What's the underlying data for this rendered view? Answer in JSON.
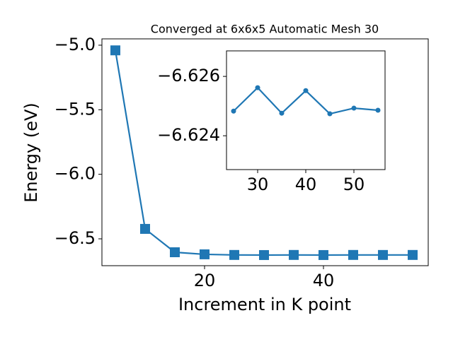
{
  "chart_data": [
    {
      "type": "line",
      "title": "Converged at 6x6x5 Automatic Mesh 30",
      "x_label": "Increment in K point",
      "y_label": "Energy (eV)",
      "x": [
        5,
        10,
        15,
        20,
        25,
        30,
        35,
        40,
        45,
        50,
        55
      ],
      "values": [
        -5.04,
        -6.423,
        -6.604,
        -6.62,
        -6.62483,
        -6.62562,
        -6.62476,
        -6.62552,
        -6.62474,
        -6.62493,
        -6.62486
      ],
      "color": "#1f77b4",
      "marker": "square",
      "xlim": [
        2.74,
        57.62
      ],
      "xticks": [
        20,
        40
      ],
      "ylim": [
        -6.708,
        -4.951
      ],
      "yticks": [
        {
          "value": -6.5,
          "label": "−6.5"
        },
        {
          "value": -6.0,
          "label": "−6.0"
        },
        {
          "value": -5.5,
          "label": "−5.5"
        },
        {
          "value": -5.0,
          "label": "−5.0"
        }
      ]
    },
    {
      "type": "line",
      "x": [
        25,
        30,
        35,
        40,
        45,
        50,
        55
      ],
      "values": [
        -6.62483,
        -6.62562,
        -6.62476,
        -6.62552,
        -6.62474,
        -6.62493,
        -6.62486
      ],
      "color": "#1f77b4",
      "marker": "circle",
      "xlim": [
        23.53,
        56.47
      ],
      "xticks": [
        30,
        40,
        50
      ],
      "ylim": [
        -6.62286,
        -6.62686
      ],
      "yticks": [
        {
          "value": -6.624,
          "label": "−6.624"
        },
        {
          "value": -6.626,
          "label": "−6.626"
        }
      ]
    }
  ]
}
